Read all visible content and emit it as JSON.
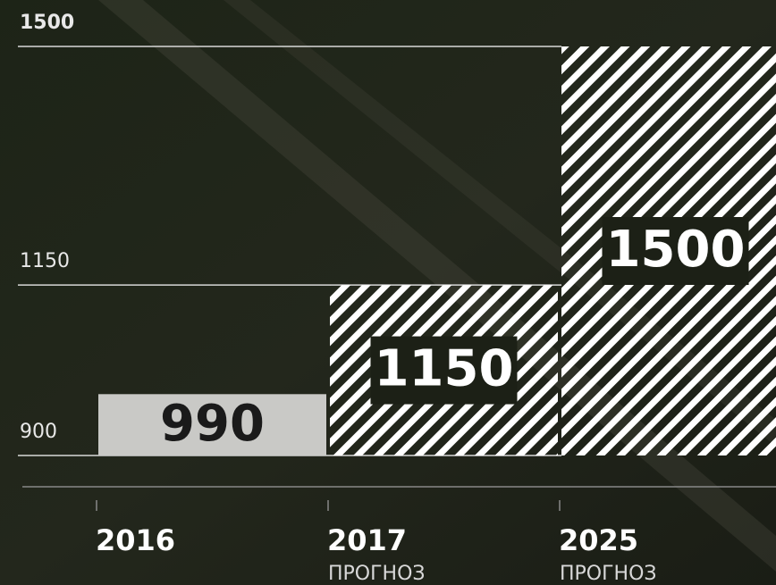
{
  "chart_data": {
    "type": "bar",
    "categories": [
      "2016",
      "2017",
      "2025"
    ],
    "category_notes": [
      null,
      "ПРОГНОЗ",
      "ПРОГНОЗ"
    ],
    "values": [
      990,
      1150,
      1500
    ],
    "ylim": [
      900,
      1500
    ],
    "yticks": [
      900,
      1150,
      1500
    ],
    "grid": true
  }
}
